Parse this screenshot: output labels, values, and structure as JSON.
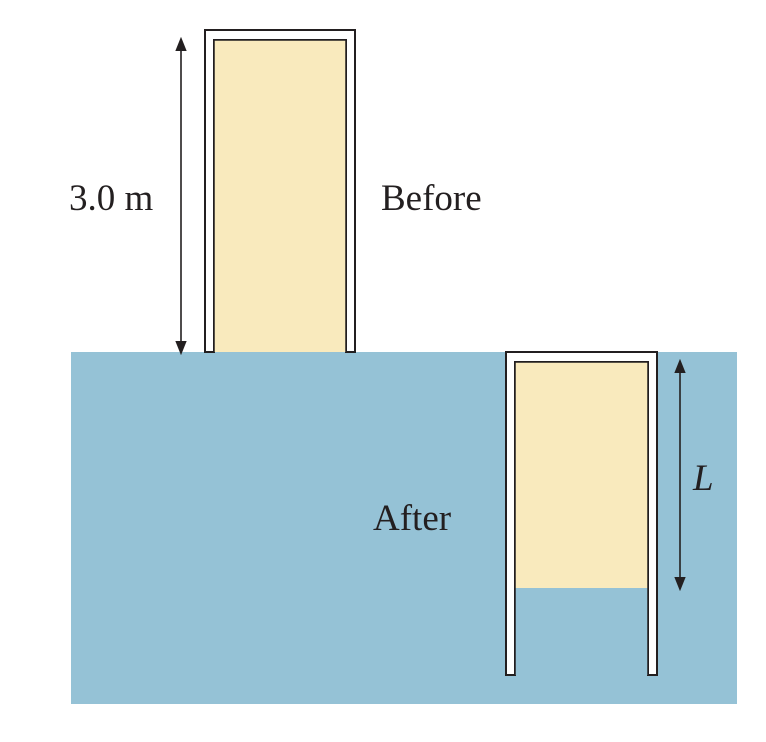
{
  "labels": {
    "height_before": "3.0 m",
    "before": "Before",
    "after": "After",
    "length_after": "L"
  },
  "colors": {
    "water": "#95c2d6",
    "air": "#f9eabd",
    "tube_wall": "#ffffff",
    "outline": "#231f20"
  }
}
